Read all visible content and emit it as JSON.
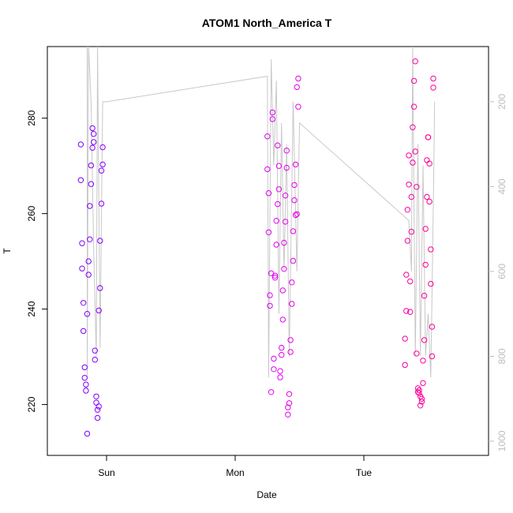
{
  "chart_data": {
    "type": "scatter",
    "title": "ATOM1 North_America T",
    "xlabel": "Date",
    "ylabel": "T",
    "x_ticks": [
      "Sun",
      "Mon",
      "Tue"
    ],
    "y_ticks": [
      220,
      240,
      260,
      280
    ],
    "y_right_ticks": [
      200,
      400,
      600,
      800,
      1000
    ],
    "ylim": [
      211,
      295
    ],
    "y_right_lim": [
      1015,
      70
    ],
    "grid": false,
    "legend": "none",
    "colors": {
      "points_start": "#7a00ff",
      "points_mid": "#e000ff",
      "points_end": "#ff0090",
      "pressure_line": "#c8c8c8"
    },
    "pressure_series": {
      "x_days": [
        0.15,
        0.15,
        0.16,
        0.18,
        0.2,
        0.22,
        0.23,
        0.25,
        0.27,
        0.3,
        1.55,
        1.56,
        1.58,
        1.6,
        1.62,
        1.64,
        1.66,
        1.68,
        1.7,
        1.72,
        1.75,
        1.78,
        1.8,
        1.8,
        2.65,
        2.67,
        2.68,
        2.7,
        2.72,
        2.74,
        2.76,
        2.78,
        2.8,
        2.82,
        2.84,
        2.85
      ],
      "pressure_hpa": [
        -50,
        850,
        -50,
        200,
        550,
        800,
        -20,
        780,
        200,
        200,
        140,
        850,
        100,
        350,
        150,
        700,
        250,
        600,
        300,
        800,
        200,
        600,
        250,
        250,
        480,
        600,
        -50,
        800,
        300,
        800,
        350,
        800,
        700,
        850,
        450,
        200
      ]
    },
    "series": [
      {
        "x_days": [
          0.1,
          0.1,
          0.11,
          0.11,
          0.12,
          0.12,
          0.13,
          0.13,
          0.14,
          0.14,
          0.15,
          0.15,
          0.16,
          0.16,
          0.17,
          0.17,
          0.18,
          0.18,
          0.19,
          0.19,
          0.2,
          0.2,
          0.21,
          0.21,
          0.22,
          0.22,
          0.23,
          0.23,
          0.24,
          0.24,
          0.25,
          0.25,
          0.26,
          0.26,
          0.27,
          0.27
        ],
        "y": [
          274.5,
          267,
          253.8,
          248.5,
          241.3,
          235.4,
          227.8,
          225.6,
          224.2,
          222.9,
          213.9,
          239,
          247.2,
          250,
          254.6,
          261.6,
          266.2,
          270.1,
          273.8,
          277.9,
          276.7,
          275,
          231.3,
          229.4,
          221.7,
          220.4,
          218.9,
          217.2,
          219.6,
          239.7,
          244.4,
          254.3,
          262.1,
          269,
          270.3,
          273.9
        ]
      },
      {
        "x_days": [
          1.55,
          1.55,
          1.56,
          1.56,
          1.57,
          1.57,
          1.58,
          1.58,
          1.59,
          1.59,
          1.6,
          1.6,
          1.61,
          1.61,
          1.62,
          1.62,
          1.63,
          1.63,
          1.64,
          1.64,
          1.65,
          1.65,
          1.66,
          1.66,
          1.67,
          1.67,
          1.68,
          1.68,
          1.69,
          1.69,
          1.7,
          1.7,
          1.71,
          1.71,
          1.72,
          1.72,
          1.73,
          1.73,
          1.74,
          1.74,
          1.75,
          1.75,
          1.76,
          1.76,
          1.77,
          1.77,
          1.78,
          1.78,
          1.79,
          1.79
        ],
        "y": [
          276.2,
          269.3,
          264.3,
          256.1,
          242.9,
          240.7,
          222.6,
          247.5,
          281.2,
          279.8,
          227.4,
          229.6,
          246.6,
          247,
          253.5,
          258.5,
          262,
          274.3,
          270,
          265.1,
          227,
          225.7,
          230.4,
          231.9,
          237.8,
          243.9,
          248.4,
          253.9,
          258.3,
          263.8,
          269.6,
          273.2,
          219.4,
          217.9,
          220.3,
          222.2,
          231,
          233.5,
          241.1,
          245.6,
          250.1,
          256.3,
          262.8,
          266,
          270.3,
          259.7,
          259.9,
          286.5,
          282.4,
          288.3
        ]
      },
      {
        "x_days": [
          2.62,
          2.62,
          2.63,
          2.63,
          2.64,
          2.64,
          2.65,
          2.65,
          2.66,
          2.66,
          2.67,
          2.67,
          2.68,
          2.68,
          2.69,
          2.69,
          2.7,
          2.7,
          2.71,
          2.71,
          2.72,
          2.72,
          2.73,
          2.73,
          2.74,
          2.74,
          2.75,
          2.75,
          2.76,
          2.76,
          2.77,
          2.77,
          2.78,
          2.78,
          2.79,
          2.79,
          2.8,
          2.8,
          2.81,
          2.81,
          2.82,
          2.82,
          2.83,
          2.83,
          2.84,
          2.84
        ],
        "y": [
          228.3,
          233.8,
          239.6,
          247.2,
          254.3,
          260.8,
          266.1,
          272.2,
          239.4,
          245.8,
          256.2,
          263.5,
          270.7,
          278.1,
          282.4,
          287.8,
          291.9,
          273,
          265.6,
          230.7,
          223.4,
          222.6,
          222.4,
          223,
          221.7,
          219.8,
          220.6,
          221.2,
          224.5,
          229.2,
          233.5,
          242.8,
          249.3,
          256.8,
          263.5,
          271.2,
          276,
          276,
          270.5,
          262.5,
          252.5,
          245.3,
          236.3,
          230.1,
          286.4,
          288.3
        ]
      }
    ]
  }
}
